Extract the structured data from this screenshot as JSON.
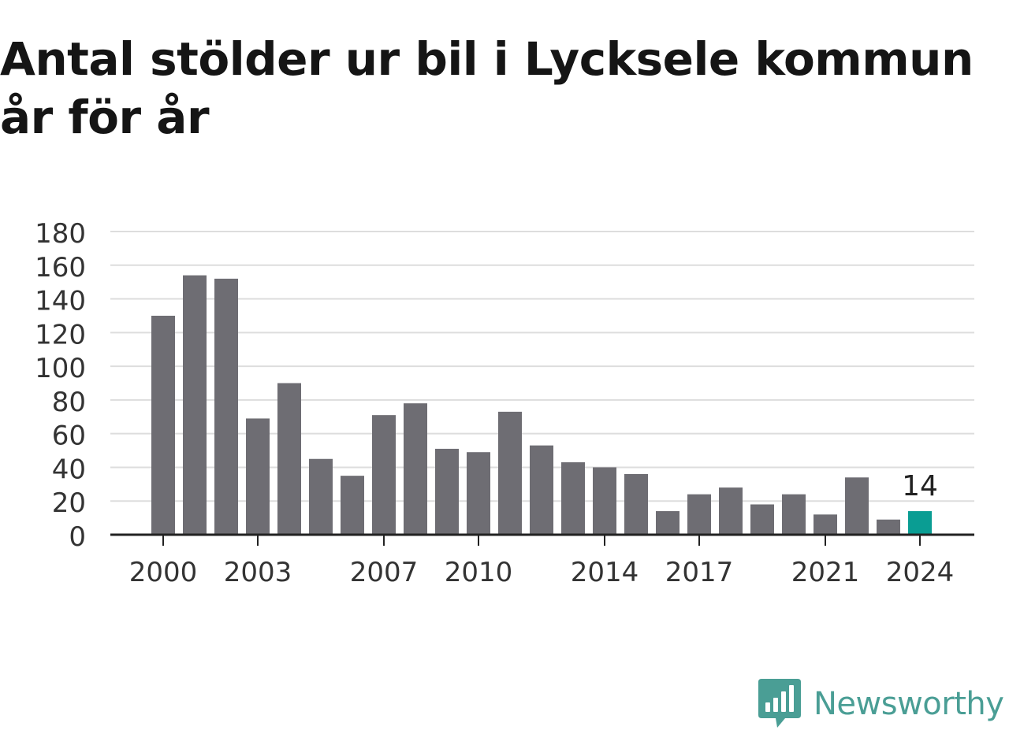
{
  "title": "Antal stölder ur bil i Lycksele kommun år för år",
  "brand": {
    "name": "Newsworthy",
    "logo_icon": "newsworthy-bar-chart-icon"
  },
  "colors": {
    "bar": "#6e6d73",
    "highlight": "#0a9d93",
    "grid": "#dddddd",
    "axis": "#222222",
    "brand": "#4a9e95"
  },
  "chart_data": {
    "type": "bar",
    "title": "Antal stölder ur bil i Lycksele kommun år för år",
    "xlabel": "",
    "ylabel": "",
    "categories": [
      "2000",
      "2001",
      "2002",
      "2003",
      "2004",
      "2005",
      "2006",
      "2007",
      "2008",
      "2009",
      "2010",
      "2011",
      "2012",
      "2013",
      "2014",
      "2015",
      "2016",
      "2017",
      "2018",
      "2019",
      "2020",
      "2021",
      "2022",
      "2023",
      "2024"
    ],
    "values": [
      130,
      154,
      152,
      69,
      90,
      45,
      35,
      71,
      78,
      51,
      49,
      73,
      53,
      43,
      40,
      36,
      14,
      24,
      28,
      18,
      24,
      12,
      34,
      9,
      14
    ],
    "x_tick_labels": [
      "2000",
      "2003",
      "2007",
      "2010",
      "2014",
      "2017",
      "2021",
      "2024"
    ],
    "y_ticks": [
      0,
      20,
      40,
      60,
      80,
      100,
      120,
      140,
      160,
      180
    ],
    "ylim": [
      0,
      180
    ],
    "grid": true,
    "highlight": {
      "category": "2024",
      "label": "14"
    }
  }
}
